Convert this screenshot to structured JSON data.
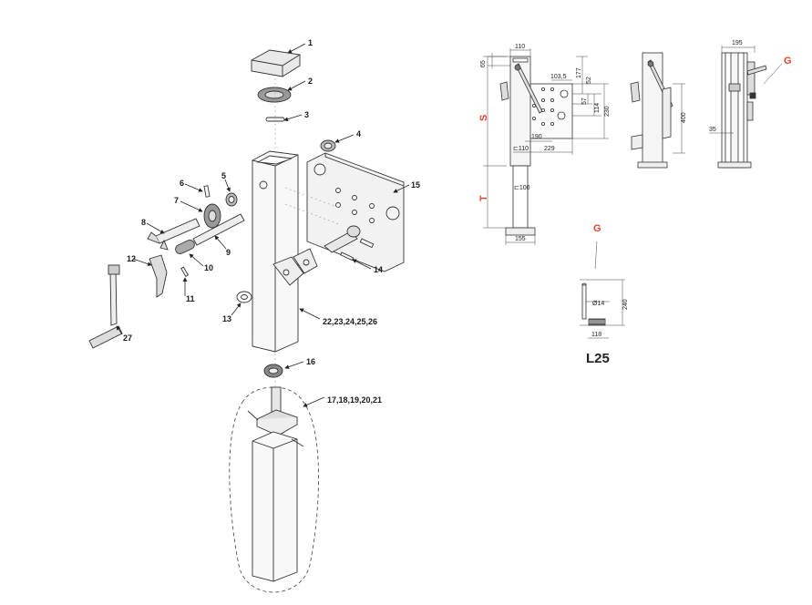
{
  "exploded_view": {
    "callouts": [
      "1",
      "2",
      "3",
      "4",
      "5",
      "6",
      "7",
      "8",
      "9",
      "10",
      "11",
      "12",
      "13",
      "14",
      "15",
      "16",
      "17,18,19,20,21",
      "22,23,24,25,26",
      "27"
    ]
  },
  "dimension_views": {
    "front": {
      "dims": [
        "110",
        "65",
        "103,5",
        "177",
        "52",
        "57",
        "114",
        "230",
        "190",
        "229",
        "⊏110",
        "⊏100",
        "155"
      ],
      "letters": [
        "S",
        "T"
      ]
    },
    "side": {
      "dims": [
        "400"
      ]
    },
    "rear": {
      "dims": [
        "195",
        "35"
      ],
      "letters": [
        "G"
      ]
    }
  },
  "pin_detail": {
    "letter": "G",
    "dims": [
      "Ø14",
      "240",
      "118"
    ],
    "model": "L25"
  },
  "colors": {
    "accent": "#e0432b",
    "line": "#333333",
    "fill": "#f4f4f4"
  }
}
